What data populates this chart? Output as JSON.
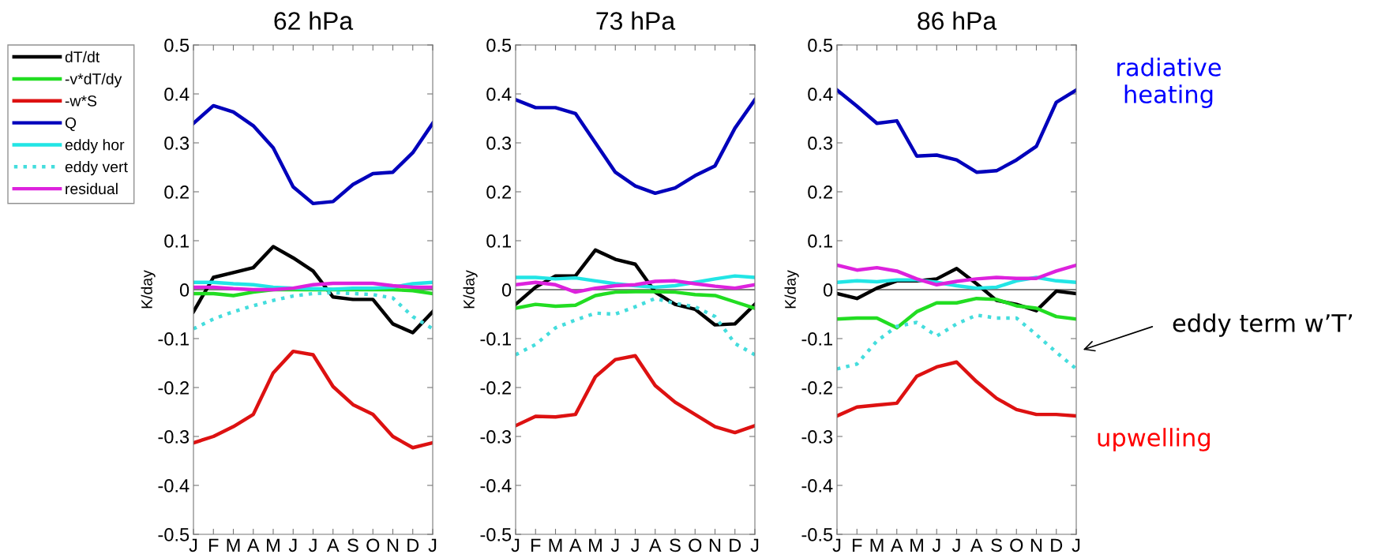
{
  "chart_data": [
    {
      "type": "line",
      "title": "62 hPa",
      "ylabel": "K/day",
      "categories": [
        "J",
        "F",
        "M",
        "A",
        "M",
        "J",
        "J",
        "A",
        "S",
        "O",
        "N",
        "D",
        "J"
      ],
      "ylim": [
        -0.5,
        0.5
      ],
      "yticks": [
        -0.5,
        -0.4,
        -0.3,
        -0.2,
        -0.1,
        0,
        0.1,
        0.2,
        0.3,
        0.4,
        0.5
      ],
      "legend": "left",
      "grid": false,
      "marker": "none",
      "ref_lines": [
        {
          "axis": "y",
          "value": 0,
          "color": "#555555"
        }
      ],
      "series": [
        {
          "name": "dT/dt",
          "color": "#000000",
          "values": [
            -0.045,
            0.025,
            0.035,
            0.045,
            0.088,
            0.065,
            0.038,
            -0.015,
            -0.02,
            -0.02,
            -0.07,
            -0.088,
            -0.045
          ]
        },
        {
          "name": "-v*dT/dy",
          "color": "#22dd22",
          "values": [
            -0.008,
            -0.008,
            -0.012,
            -0.005,
            0,
            0,
            0,
            0,
            0,
            0,
            0,
            -0.002,
            -0.008
          ]
        },
        {
          "name": "-w*S",
          "color": "#dd1111",
          "values": [
            -0.313,
            -0.3,
            -0.28,
            -0.255,
            -0.17,
            -0.126,
            -0.133,
            -0.198,
            -0.235,
            -0.255,
            -0.3,
            -0.323,
            -0.313
          ]
        },
        {
          "name": "Q",
          "color": "#0000bb",
          "values": [
            0.34,
            0.376,
            0.363,
            0.335,
            0.29,
            0.21,
            0.176,
            0.18,
            0.215,
            0.237,
            0.24,
            0.28,
            0.34
          ]
        },
        {
          "name": "eddy hor",
          "color": "#22e5e5",
          "values": [
            0.015,
            0.015,
            0.012,
            0.01,
            0.005,
            0.003,
            0.002,
            0.001,
            0.003,
            0.003,
            0.005,
            0.012,
            0.015
          ]
        },
        {
          "name": "eddy vert",
          "color": "#44dddd",
          "line_style": "dotted",
          "values": [
            -0.08,
            -0.06,
            -0.045,
            -0.033,
            -0.022,
            -0.013,
            -0.008,
            -0.006,
            -0.008,
            -0.01,
            -0.017,
            -0.055,
            -0.08
          ]
        },
        {
          "name": "residual",
          "color": "#dd22dd",
          "values": [
            0.005,
            0.005,
            0.002,
            0,
            0,
            0.003,
            0.01,
            0.013,
            0.013,
            0.013,
            0.008,
            0.005,
            0.005
          ]
        }
      ]
    },
    {
      "type": "line",
      "title": "73 hPa",
      "ylabel": "K/day",
      "categories": [
        "J",
        "F",
        "M",
        "A",
        "M",
        "J",
        "J",
        "A",
        "S",
        "O",
        "N",
        "D",
        "J"
      ],
      "ylim": [
        -0.5,
        0.5
      ],
      "yticks": [
        -0.5,
        -0.4,
        -0.3,
        -0.2,
        -0.1,
        0,
        0.1,
        0.2,
        0.3,
        0.4,
        0.5
      ],
      "grid": false,
      "marker": "none",
      "ref_lines": [
        {
          "axis": "y",
          "value": 0,
          "color": "#555555"
        }
      ],
      "series": [
        {
          "color": "#000000",
          "values": [
            -0.03,
            0.005,
            0.028,
            0.028,
            0.081,
            0.062,
            0.052,
            -0.005,
            -0.03,
            -0.04,
            -0.072,
            -0.07,
            -0.03
          ]
        },
        {
          "color": "#22dd22",
          "values": [
            -0.038,
            -0.03,
            -0.034,
            -0.032,
            -0.012,
            -0.005,
            -0.004,
            -0.004,
            -0.005,
            -0.01,
            -0.012,
            -0.025,
            -0.038
          ]
        },
        {
          "color": "#dd1111",
          "values": [
            -0.278,
            -0.259,
            -0.26,
            -0.255,
            -0.178,
            -0.143,
            -0.135,
            -0.196,
            -0.23,
            -0.255,
            -0.28,
            -0.292,
            -0.278
          ]
        },
        {
          "color": "#0000bb",
          "values": [
            0.388,
            0.372,
            0.372,
            0.36,
            0.3,
            0.24,
            0.212,
            0.197,
            0.208,
            0.233,
            0.253,
            0.33,
            0.388
          ]
        },
        {
          "color": "#22e5e5",
          "values": [
            0.025,
            0.025,
            0.022,
            0.024,
            0.018,
            0.012,
            0.008,
            0.005,
            0.008,
            0.015,
            0.022,
            0.028,
            0.025
          ]
        },
        {
          "color": "#44dddd",
          "line_style": "dotted",
          "values": [
            -0.133,
            -0.112,
            -0.078,
            -0.062,
            -0.048,
            -0.05,
            -0.035,
            -0.018,
            -0.028,
            -0.035,
            -0.055,
            -0.11,
            -0.133
          ]
        },
        {
          "color": "#dd22dd",
          "values": [
            0.01,
            0.015,
            0.01,
            -0.005,
            0.003,
            0.008,
            0.01,
            0.017,
            0.018,
            0.012,
            0.007,
            0.003,
            0.01
          ]
        }
      ]
    },
    {
      "type": "line",
      "title": "86 hPa",
      "ylabel": "K/day",
      "categories": [
        "J",
        "F",
        "M",
        "A",
        "M",
        "J",
        "J",
        "A",
        "S",
        "O",
        "N",
        "D",
        "J"
      ],
      "ylim": [
        -0.5,
        0.5
      ],
      "yticks": [
        -0.5,
        -0.4,
        -0.3,
        -0.2,
        -0.1,
        0,
        0.1,
        0.2,
        0.3,
        0.4,
        0.5
      ],
      "grid": false,
      "marker": "none",
      "ref_lines": [
        {
          "axis": "y",
          "value": 0,
          "color": "#555555"
        }
      ],
      "annotations": [
        "radiative\nheating",
        "eddy term w’T’",
        "upwelling"
      ],
      "series": [
        {
          "color": "#000000",
          "values": [
            -0.008,
            -0.018,
            0.003,
            0.018,
            0.018,
            0.022,
            0.043,
            0.012,
            -0.022,
            -0.03,
            -0.043,
            -0.003,
            -0.008
          ]
        },
        {
          "color": "#22dd22",
          "values": [
            -0.06,
            -0.058,
            -0.058,
            -0.078,
            -0.045,
            -0.027,
            -0.027,
            -0.018,
            -0.02,
            -0.033,
            -0.038,
            -0.055,
            -0.06
          ]
        },
        {
          "color": "#dd1111",
          "values": [
            -0.258,
            -0.24,
            -0.236,
            -0.232,
            -0.177,
            -0.158,
            -0.148,
            -0.188,
            -0.222,
            -0.245,
            -0.255,
            -0.255,
            -0.258
          ]
        },
        {
          "color": "#0000bb",
          "values": [
            0.408,
            0.375,
            0.34,
            0.345,
            0.273,
            0.275,
            0.265,
            0.24,
            0.243,
            0.265,
            0.293,
            0.383,
            0.408
          ]
        },
        {
          "color": "#22e5e5",
          "values": [
            0.015,
            0.018,
            0.016,
            0.02,
            0.02,
            0.015,
            0.008,
            0.003,
            0.005,
            0.018,
            0.025,
            0.018,
            0.015
          ]
        },
        {
          "color": "#44dddd",
          "line_style": "dotted",
          "values": [
            -0.162,
            -0.152,
            -0.105,
            -0.075,
            -0.067,
            -0.095,
            -0.07,
            -0.052,
            -0.058,
            -0.058,
            -0.092,
            -0.128,
            -0.162
          ]
        },
        {
          "color": "#dd22dd",
          "values": [
            0.05,
            0.04,
            0.045,
            0.038,
            0.022,
            0.01,
            0.017,
            0.022,
            0.025,
            0.023,
            0.023,
            0.038,
            0.05
          ]
        }
      ]
    }
  ]
}
